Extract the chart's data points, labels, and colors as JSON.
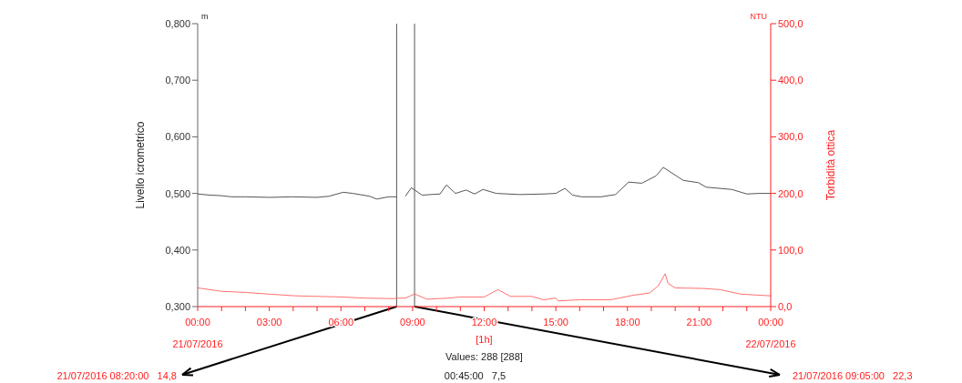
{
  "chart_data": {
    "type": "line",
    "xlabel": "[1h]",
    "ylabel": "Livello icrometrico",
    "y2label": "Torbidità ottica",
    "xlim": [
      0,
      24
    ],
    "xticks": [
      {
        "value": 0,
        "label": "00:00\n21/07/2016"
      },
      {
        "value": 1,
        "label": null
      },
      {
        "value": 2,
        "label": null
      },
      {
        "value": 3,
        "label": "03:00"
      },
      {
        "value": 4,
        "label": null
      },
      {
        "value": 5,
        "label": null
      },
      {
        "value": 6,
        "label": "06:00"
      },
      {
        "value": 7,
        "label": null
      },
      {
        "value": 8,
        "label": null
      },
      {
        "value": 9,
        "label": "09:00"
      },
      {
        "value": 10,
        "label": null
      },
      {
        "value": 11,
        "label": null
      },
      {
        "value": 12,
        "label": "12:00"
      },
      {
        "value": 13,
        "label": null
      },
      {
        "value": 14,
        "label": null
      },
      {
        "value": 15,
        "label": "15:00"
      },
      {
        "value": 16,
        "label": null
      },
      {
        "value": 17,
        "label": null
      },
      {
        "value": 18,
        "label": "18:00"
      },
      {
        "value": 19,
        "label": null
      },
      {
        "value": 20,
        "label": null
      },
      {
        "value": 21,
        "label": "21:00"
      },
      {
        "value": 22,
        "label": null
      },
      {
        "value": 23,
        "label": null
      },
      {
        "value": 24,
        "label": "00:00\n22/07/2016"
      }
    ],
    "ylim": [
      0.3,
      0.8
    ],
    "yticks": [
      {
        "value": 0.3,
        "label": "0,300"
      },
      {
        "value": 0.4,
        "label": "0,400"
      },
      {
        "value": 0.5,
        "label": "0,500"
      },
      {
        "value": 0.6,
        "label": "0,600"
      },
      {
        "value": 0.7,
        "label": "0,700"
      },
      {
        "value": 0.8,
        "label": "0,800"
      }
    ],
    "y2lim": [
      0,
      500
    ],
    "y2ticks": [
      {
        "value": 0,
        "label": "0,0"
      },
      {
        "value": 100,
        "label": "100,0"
      },
      {
        "value": 200,
        "label": "200,0"
      },
      {
        "value": 300,
        "label": "300,0"
      },
      {
        "value": 400,
        "label": "400,0"
      },
      {
        "value": 500,
        "label": "500,0"
      }
    ],
    "series": [
      {
        "color": "#555555",
        "x": [
          0,
          0.5,
          1,
          1.4,
          2,
          3,
          4,
          5,
          5.5,
          6.1,
          6.5,
          7.2,
          7.5,
          8.0,
          8.33,
          8.5,
          8.7,
          8.95,
          9.4,
          10.15,
          10.42,
          10.8,
          11.24,
          11.6,
          11.95,
          12.5,
          13.5,
          14.5,
          15.0,
          15.38,
          15.7,
          16.08,
          16.9,
          17.5,
          18.05,
          18.6,
          19.2,
          19.5,
          20.34,
          20.97,
          21.3,
          22.37,
          23.0,
          23.5,
          24
        ],
        "values": [
          0.499,
          0.497,
          0.496,
          0.494,
          0.494,
          0.493,
          0.494,
          0.493,
          0.495,
          0.502,
          0.5,
          0.495,
          0.49,
          0.494,
          0.494,
          null,
          0.495,
          0.51,
          0.497,
          0.499,
          0.515,
          0.5,
          0.506,
          0.499,
          0.507,
          0.5,
          0.498,
          0.499,
          0.5,
          0.509,
          0.497,
          0.494,
          0.494,
          0.498,
          0.52,
          0.518,
          0.531,
          0.546,
          0.523,
          0.519,
          0.511,
          0.507,
          0.499,
          0.5,
          0.5
        ]
      },
      {
        "color": "#ff7070",
        "axis": "y2",
        "x": [
          0,
          1,
          2,
          3,
          4.1,
          5,
          6,
          7,
          8.2,
          8.33,
          8.7,
          9.083,
          9.6,
          10.5,
          11,
          12.0,
          12.58,
          13.1,
          14.0,
          14.49,
          15.0,
          15.1,
          16,
          17.3,
          18.24,
          18.93,
          19.3,
          19.58,
          19.7,
          20.0,
          21.2,
          21.87,
          22.75,
          24
        ],
        "values": [
          33,
          27,
          25,
          22,
          19,
          18,
          17,
          15,
          14,
          14.8,
          15,
          22.3,
          13,
          15,
          17,
          17,
          30,
          18,
          18,
          12,
          15,
          10,
          12,
          12,
          20,
          24,
          37,
          58,
          41,
          33,
          32,
          30,
          22,
          19
        ]
      }
    ],
    "ref_lines": [
      {
        "axis": "x",
        "value": 8.333,
        "label": "21/07/2016 08:20:00   14,8",
        "color": "#555555"
      },
      {
        "axis": "x",
        "value": 9.083,
        "label": "21/07/2016 09:05:00   22,3",
        "color": "#555555"
      }
    ],
    "annotations": [
      "Values: 288 [288]",
      "00:45:00   7,5",
      "m",
      "NTU"
    ],
    "marker": "none",
    "line_style": "solid"
  }
}
